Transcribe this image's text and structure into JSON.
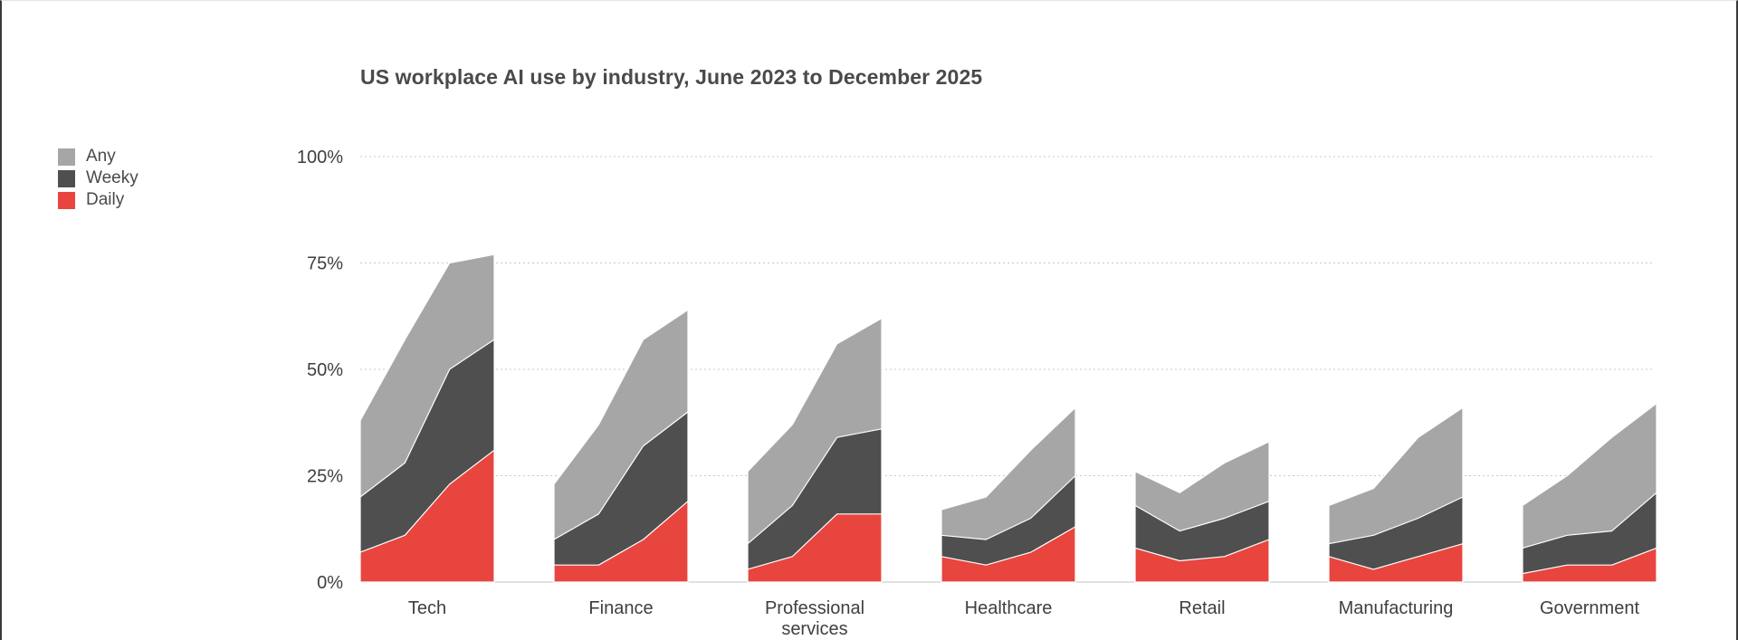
{
  "chart_data": {
    "type": "area",
    "title": "US workplace AI use by industry, June 2023 to December 2025",
    "xlabel": "",
    "ylabel": "",
    "ylim": [
      0,
      100
    ],
    "y_ticks": [
      "0%",
      "25%",
      "50%",
      "75%",
      "100%"
    ],
    "y_tick_values": [
      0,
      25,
      50,
      75,
      100
    ],
    "grid": "horizontal dotted",
    "legend_position": "left",
    "legend": [
      {
        "name": "Any",
        "color": "#a6a6a6"
      },
      {
        "name": "Weeky",
        "color": "#4f4f4f"
      },
      {
        "name": "Daily",
        "color": "#e8453f"
      }
    ],
    "categories": [
      {
        "label": [
          "Tech"
        ],
        "any": [
          38,
          57,
          75,
          77
        ],
        "weekly": [
          20,
          28,
          50,
          57
        ],
        "daily": [
          7,
          11,
          23,
          31
        ]
      },
      {
        "label": [
          "Finance"
        ],
        "any": [
          23,
          37,
          57,
          64
        ],
        "weekly": [
          10,
          16,
          32,
          40
        ],
        "daily": [
          4,
          4,
          10,
          19
        ]
      },
      {
        "label": [
          "Professional",
          "services"
        ],
        "any": [
          26,
          37,
          56,
          62
        ],
        "weekly": [
          9,
          18,
          34,
          36
        ],
        "daily": [
          3,
          6,
          16,
          16
        ]
      },
      {
        "label": [
          "Healthcare"
        ],
        "any": [
          17,
          20,
          31,
          41
        ],
        "weekly": [
          11,
          10,
          15,
          25
        ],
        "daily": [
          6,
          4,
          7,
          13
        ]
      },
      {
        "label": [
          "Retail"
        ],
        "any": [
          26,
          21,
          28,
          33
        ],
        "weekly": [
          18,
          12,
          15,
          19
        ],
        "daily": [
          8,
          5,
          6,
          10
        ]
      },
      {
        "label": [
          "Manufacturing"
        ],
        "any": [
          18,
          22,
          34,
          41
        ],
        "weekly": [
          9,
          11,
          15,
          20
        ],
        "daily": [
          6,
          3,
          6,
          9
        ]
      },
      {
        "label": [
          "Government"
        ],
        "any": [
          18,
          25,
          34,
          42
        ],
        "weekly": [
          8,
          11,
          12,
          21
        ],
        "daily": [
          2,
          4,
          4,
          8
        ]
      }
    ]
  }
}
